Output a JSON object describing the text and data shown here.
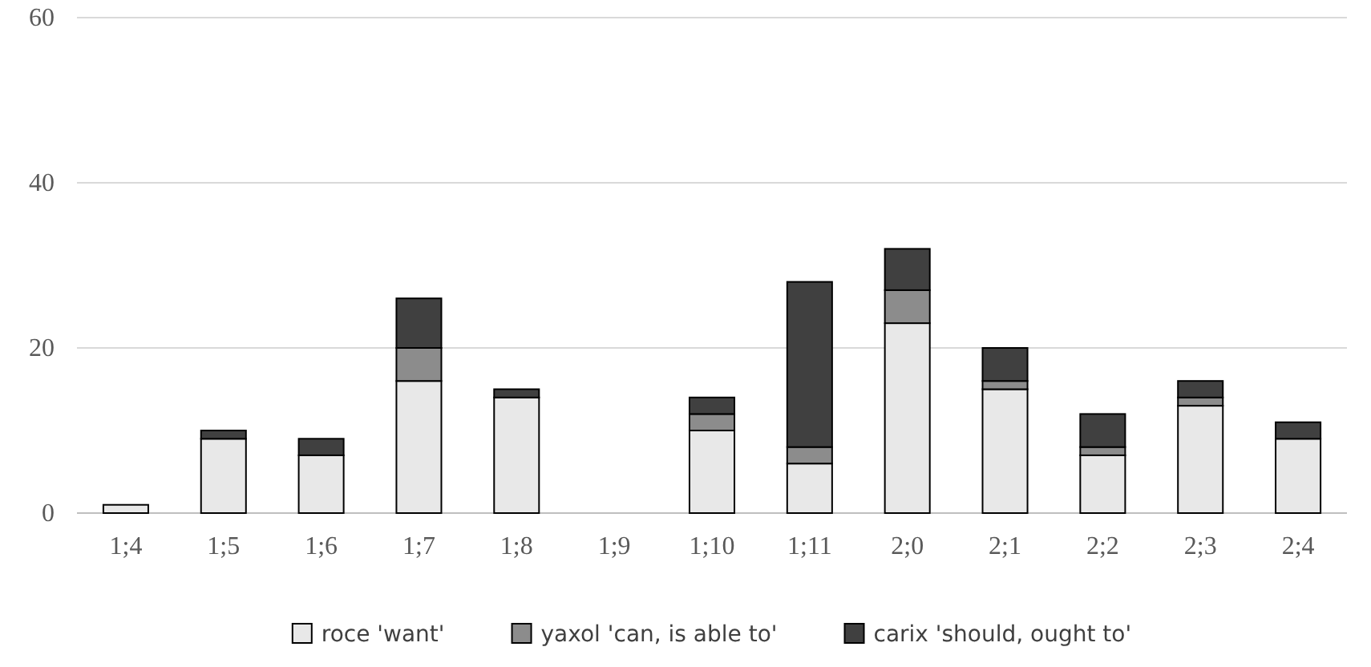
{
  "chart_data": {
    "type": "bar",
    "stacked": true,
    "categories": [
      "1;4",
      "1;5",
      "1;6",
      "1;7",
      "1;8",
      "1;9",
      "1;10",
      "1;11",
      "2;0",
      "2;1",
      "2;2",
      "2;3",
      "2;4"
    ],
    "series": [
      {
        "name": "roce 'want'",
        "color": "#e8e8e8",
        "values": [
          1,
          9,
          7,
          16,
          14,
          0,
          10,
          6,
          23,
          15,
          7,
          13,
          9
        ]
      },
      {
        "name": "yaxol 'can, is able to'",
        "color": "#8c8c8c",
        "values": [
          0,
          0,
          0,
          4,
          0,
          0,
          2,
          2,
          4,
          1,
          1,
          1,
          0
        ]
      },
      {
        "name": "carix 'should, ought to'",
        "color": "#404040",
        "values": [
          0,
          1,
          2,
          6,
          1,
          0,
          2,
          20,
          5,
          4,
          4,
          2,
          2
        ]
      }
    ],
    "ylim": [
      0,
      60
    ],
    "yticks": [
      0,
      20,
      40,
      60
    ],
    "grid": "y",
    "legend": "bottom"
  }
}
